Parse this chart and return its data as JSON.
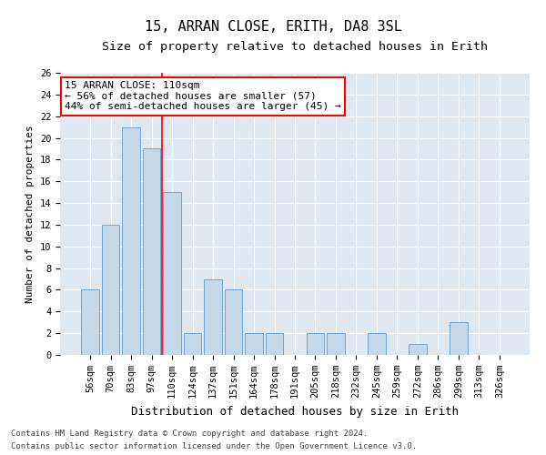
{
  "title1": "15, ARRAN CLOSE, ERITH, DA8 3SL",
  "title2": "Size of property relative to detached houses in Erith",
  "xlabel": "Distribution of detached houses by size in Erith",
  "ylabel": "Number of detached properties",
  "categories": [
    "56sqm",
    "70sqm",
    "83sqm",
    "97sqm",
    "110sqm",
    "124sqm",
    "137sqm",
    "151sqm",
    "164sqm",
    "178sqm",
    "191sqm",
    "205sqm",
    "218sqm",
    "232sqm",
    "245sqm",
    "259sqm",
    "272sqm",
    "286sqm",
    "299sqm",
    "313sqm",
    "326sqm"
  ],
  "values": [
    6,
    12,
    21,
    19,
    15,
    2,
    7,
    6,
    2,
    2,
    0,
    2,
    2,
    0,
    2,
    0,
    1,
    0,
    3,
    0,
    0
  ],
  "bar_color": "#c5d8e8",
  "bar_edge_color": "#5b9bd5",
  "red_line_x": 3.5,
  "annotation_title": "15 ARRAN CLOSE: 110sqm",
  "annotation_line2": "← 56% of detached houses are smaller (57)",
  "annotation_line3": "44% of semi-detached houses are larger (45) →",
  "ylim": [
    0,
    26
  ],
  "yticks": [
    0,
    2,
    4,
    6,
    8,
    10,
    12,
    14,
    16,
    18,
    20,
    22,
    24,
    26
  ],
  "footer1": "Contains HM Land Registry data © Crown copyright and database right 2024.",
  "footer2": "Contains public sector information licensed under the Open Government Licence v3.0.",
  "background_color": "#dde8f0",
  "grid_color": "#ffffff",
  "title1_fontsize": 11,
  "title2_fontsize": 9.5,
  "xlabel_fontsize": 9,
  "ylabel_fontsize": 8,
  "tick_fontsize": 7.5,
  "annot_fontsize": 8,
  "footer_fontsize": 6.5
}
